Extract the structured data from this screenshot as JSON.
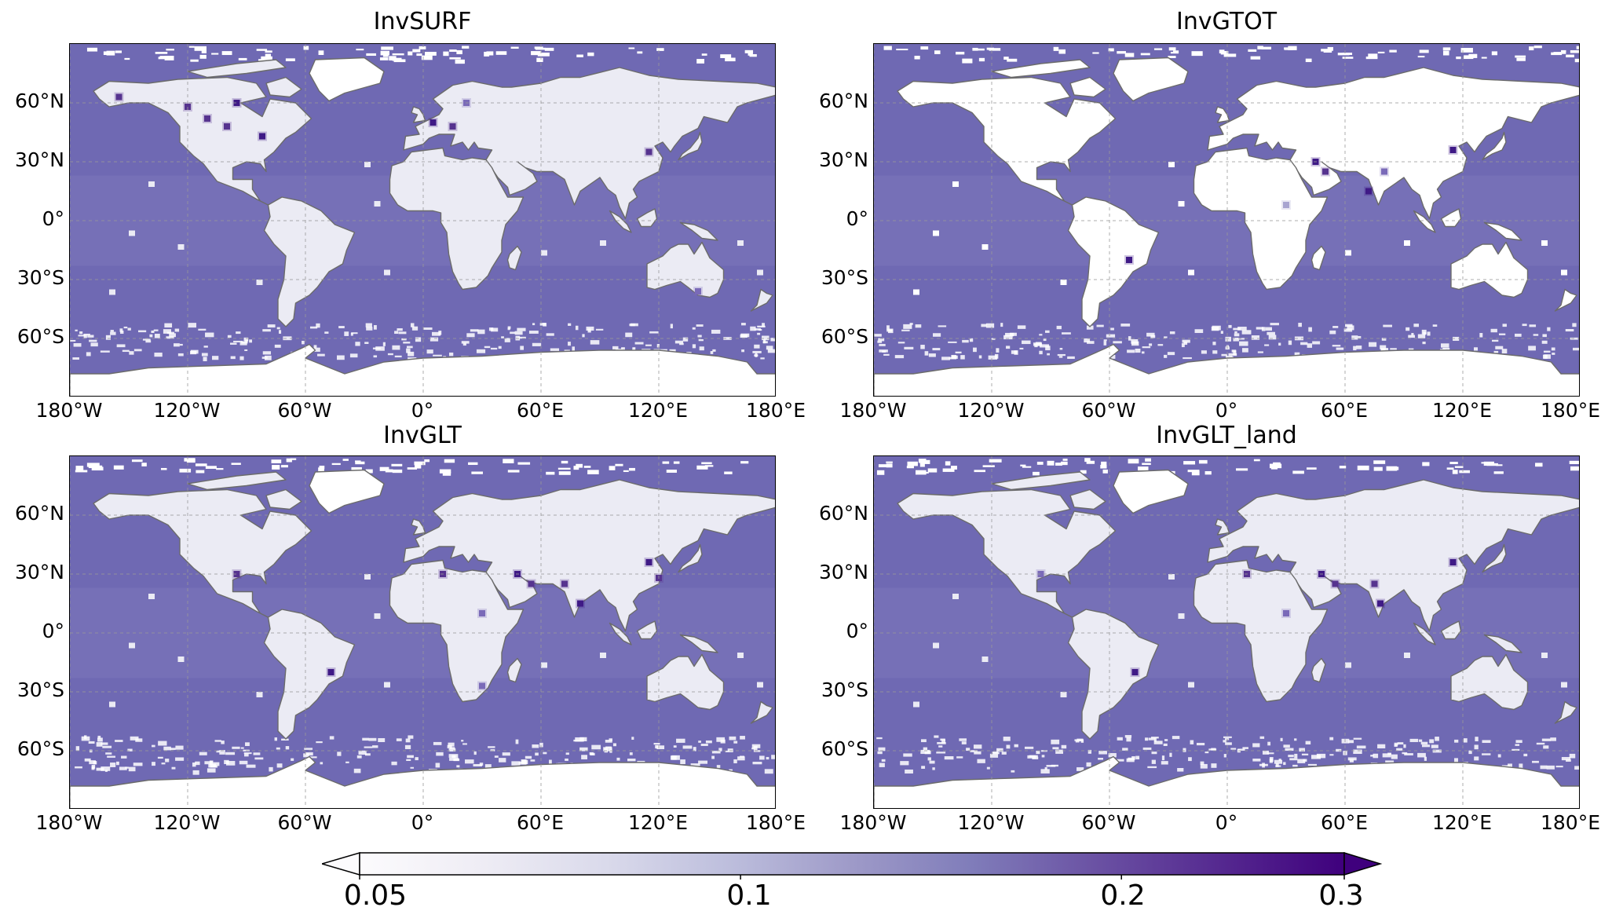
{
  "colors": {
    "ocean": "#6f69b3",
    "ocean_light": "#7b76b9",
    "land": "#ebebf4",
    "land_white": "#ffffff",
    "ice": "#ffffff",
    "coast": "#6b6b6b",
    "grid": "#9a9a9a",
    "hotspot_mid": "#7a6ab8",
    "hotspot_dark": "#3f1a86"
  },
  "panels": [
    {
      "title": "InvSURF",
      "land_tone": "land",
      "hotspots": [
        {
          "lon": -155,
          "lat": 63,
          "level": 0.2
        },
        {
          "lon": -120,
          "lat": 58,
          "level": 0.2
        },
        {
          "lon": -110,
          "lat": 52,
          "level": 0.2
        },
        {
          "lon": -95,
          "lat": 60,
          "level": 0.3
        },
        {
          "lon": -82,
          "lat": 43,
          "level": 0.3
        },
        {
          "lon": -100,
          "lat": 48,
          "level": 0.2
        },
        {
          "lon": 5,
          "lat": 50,
          "level": 0.3
        },
        {
          "lon": 15,
          "lat": 48,
          "level": 0.2
        },
        {
          "lon": 22,
          "lat": 60,
          "level": 0.15
        },
        {
          "lon": 115,
          "lat": 35,
          "level": 0.2
        },
        {
          "lon": 140,
          "lat": -36,
          "level": 0.15
        }
      ]
    },
    {
      "title": "InvGTOT",
      "land_tone": "land_white",
      "hotspots": [
        {
          "lon": 45,
          "lat": 30,
          "level": 0.3
        },
        {
          "lon": 50,
          "lat": 25,
          "level": 0.2
        },
        {
          "lon": 72,
          "lat": 15,
          "level": 0.3
        },
        {
          "lon": 80,
          "lat": 25,
          "level": 0.15
        },
        {
          "lon": 115,
          "lat": 36,
          "level": 0.3
        },
        {
          "lon": -50,
          "lat": -20,
          "level": 0.3
        },
        {
          "lon": 30,
          "lat": 8,
          "level": 0.1
        }
      ]
    },
    {
      "title": "InvGLT",
      "land_tone": "land",
      "hotspots": [
        {
          "lon": -95,
          "lat": 30,
          "level": 0.2
        },
        {
          "lon": 10,
          "lat": 30,
          "level": 0.2
        },
        {
          "lon": 48,
          "lat": 30,
          "level": 0.3
        },
        {
          "lon": 55,
          "lat": 25,
          "level": 0.2
        },
        {
          "lon": 72,
          "lat": 25,
          "level": 0.2
        },
        {
          "lon": 80,
          "lat": 15,
          "level": 0.3
        },
        {
          "lon": 115,
          "lat": 36,
          "level": 0.3
        },
        {
          "lon": 120,
          "lat": 28,
          "level": 0.2
        },
        {
          "lon": 30,
          "lat": 10,
          "level": 0.15
        },
        {
          "lon": -47,
          "lat": -20,
          "level": 0.3
        },
        {
          "lon": 30,
          "lat": -27,
          "level": 0.15
        }
      ]
    },
    {
      "title": "InvGLT_land",
      "land_tone": "land",
      "hotspots": [
        {
          "lon": -95,
          "lat": 30,
          "level": 0.15
        },
        {
          "lon": 10,
          "lat": 30,
          "level": 0.2
        },
        {
          "lon": 48,
          "lat": 30,
          "level": 0.3
        },
        {
          "lon": 55,
          "lat": 25,
          "level": 0.2
        },
        {
          "lon": 75,
          "lat": 25,
          "level": 0.2
        },
        {
          "lon": 78,
          "lat": 15,
          "level": 0.3
        },
        {
          "lon": 115,
          "lat": 36,
          "level": 0.3
        },
        {
          "lon": 30,
          "lat": 10,
          "level": 0.15
        },
        {
          "lon": -47,
          "lat": -20,
          "level": 0.3
        }
      ]
    }
  ],
  "lat_ticks": [
    "60°N",
    "30°N",
    "0°",
    "30°S",
    "60°S"
  ],
  "lat_values": [
    60,
    30,
    0,
    -30,
    -60
  ],
  "lon_ticks": [
    "180°W",
    "120°W",
    "60°W",
    "0°",
    "60°E",
    "120°E",
    "180°E"
  ],
  "lon_values": [
    -180,
    -120,
    -60,
    0,
    60,
    120,
    180
  ],
  "colorbar": {
    "ticks": [
      "0.05",
      "0.1",
      "0.2",
      "0.3"
    ],
    "tick_values": [
      0.05,
      0.1,
      0.2,
      0.3
    ],
    "min": 0.05,
    "max": 0.3,
    "scale": "log",
    "extend": "both",
    "colors": [
      "#fcfbfd",
      "#efedf5",
      "#dadaeb",
      "#bcbddc",
      "#9e9ac8",
      "#807dba",
      "#6a51a3",
      "#54278f",
      "#3f007d"
    ]
  }
}
